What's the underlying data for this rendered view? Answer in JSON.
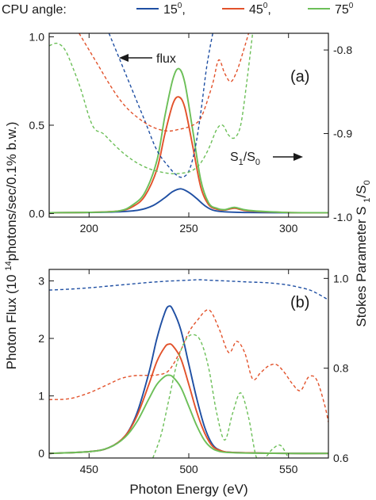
{
  "legend": {
    "title": "CPU angle:",
    "entries": [
      {
        "label": "15",
        "sup": "0",
        "suffix": ",",
        "color": "#1f4fa3"
      },
      {
        "label": "45",
        "sup": "0",
        "suffix": ",",
        "color": "#e2522b"
      },
      {
        "label": "75",
        "sup": "0",
        "suffix": "",
        "color": "#6cbf58"
      }
    ]
  },
  "left_axis_label": {
    "pre": "Photon Flux (10 ",
    "sup": "14",
    "post": "photons/sec/0.1% b.w.)"
  },
  "right_axis_label": {
    "pre": "Stokes Parameter S ",
    "sub1": "1",
    "mid": "/S",
    "sub0": "0"
  },
  "x_axis_label": "Photon Energy (eV)",
  "chart_data": [
    {
      "type": "line",
      "panel": "(a)",
      "xlim": [
        180,
        320
      ],
      "ylim_left": [
        -0.02,
        1.02
      ],
      "ylim_right": [
        -1.0,
        -0.78
      ],
      "xticks": [
        "200",
        "250",
        "300"
      ],
      "xtick_values": [
        200,
        250,
        300
      ],
      "yticks_left": [
        "0.0",
        "0.5",
        "1.0"
      ],
      "ytick_left_values": [
        0,
        0.5,
        1.0
      ],
      "yticks_right": [
        "-1.0",
        "-0.9",
        "-0.8"
      ],
      "ytick_right_values": [
        -1.0,
        -0.9,
        -0.8
      ],
      "annotations": [
        {
          "text": "flux",
          "arrow": "left"
        },
        {
          "text": "S",
          "sub1": "1",
          "mid": "/S",
          "sub0": "0",
          "arrow": "right"
        }
      ],
      "series": [
        {
          "legend_ref": "15",
          "axis": "left",
          "style": "solid",
          "color": "#1f4fa3",
          "x": [
            180,
            200,
            215,
            225,
            232,
            238,
            242,
            246,
            250,
            254,
            258,
            262,
            268,
            280,
            300,
            320
          ],
          "y": [
            0.005,
            0.006,
            0.01,
            0.02,
            0.045,
            0.09,
            0.125,
            0.14,
            0.12,
            0.085,
            0.045,
            0.02,
            0.01,
            0.006,
            0.005,
            0.005
          ]
        },
        {
          "legend_ref": "45",
          "axis": "left",
          "style": "solid",
          "color": "#e2522b",
          "x": [
            180,
            200,
            215,
            222,
            228,
            234,
            238,
            242,
            245,
            248,
            252,
            256,
            260,
            264,
            268,
            273,
            280,
            300,
            320
          ],
          "y": [
            0.005,
            0.007,
            0.015,
            0.04,
            0.1,
            0.25,
            0.45,
            0.62,
            0.66,
            0.6,
            0.38,
            0.15,
            0.05,
            0.025,
            0.02,
            0.03,
            0.015,
            0.006,
            0.005
          ]
        },
        {
          "legend_ref": "75",
          "axis": "left",
          "style": "solid",
          "color": "#6cbf58",
          "x": [
            180,
            200,
            215,
            222,
            228,
            234,
            238,
            242,
            245,
            248,
            252,
            256,
            260,
            264,
            268,
            273,
            280,
            300,
            320
          ],
          "y": [
            0.005,
            0.007,
            0.015,
            0.05,
            0.12,
            0.3,
            0.55,
            0.76,
            0.82,
            0.74,
            0.47,
            0.19,
            0.06,
            0.03,
            0.022,
            0.035,
            0.018,
            0.006,
            0.005
          ]
        },
        {
          "legend_ref": "15",
          "axis": "right",
          "style": "dashed",
          "color": "#1f4fa3",
          "x": [
            210,
            216,
            222,
            228,
            234,
            240,
            244,
            247,
            250,
            253,
            256,
            259,
            262
          ],
          "y": [
            -0.78,
            -0.815,
            -0.85,
            -0.885,
            -0.92,
            -0.94,
            -0.95,
            -0.952,
            -0.945,
            -0.92,
            -0.875,
            -0.82,
            -0.78
          ]
        },
        {
          "legend_ref": "45",
          "axis": "right",
          "style": "dashed",
          "color": "#e2522b",
          "x": [
            195,
            200,
            205,
            210,
            215,
            220,
            225,
            230,
            235,
            240,
            245,
            250,
            255,
            258,
            262,
            265,
            268,
            271,
            274,
            277,
            280
          ],
          "y": [
            -0.78,
            -0.8,
            -0.82,
            -0.84,
            -0.858,
            -0.872,
            -0.882,
            -0.89,
            -0.895,
            -0.897,
            -0.895,
            -0.892,
            -0.885,
            -0.87,
            -0.84,
            -0.812,
            -0.828,
            -0.838,
            -0.826,
            -0.804,
            -0.78
          ]
        },
        {
          "legend_ref": "75",
          "axis": "right",
          "style": "dashed",
          "color": "#6cbf58",
          "x": [
            180,
            184,
            188,
            192,
            196,
            200,
            203,
            207,
            212,
            218,
            224,
            230,
            236,
            242,
            248,
            252,
            256,
            260,
            264,
            267,
            270,
            273,
            276,
            279,
            282
          ],
          "y": [
            -0.795,
            -0.792,
            -0.8,
            -0.822,
            -0.848,
            -0.88,
            -0.895,
            -0.9,
            -0.912,
            -0.925,
            -0.935,
            -0.942,
            -0.946,
            -0.948,
            -0.947,
            -0.944,
            -0.935,
            -0.918,
            -0.895,
            -0.89,
            -0.902,
            -0.905,
            -0.89,
            -0.84,
            -0.78
          ]
        }
      ]
    },
    {
      "type": "line",
      "panel": "(b)",
      "xlim": [
        430,
        570
      ],
      "ylim_left": [
        -0.08,
        3.2
      ],
      "ylim_right": [
        0.6,
        1.02
      ],
      "xticks": [
        "450",
        "500",
        "550"
      ],
      "xtick_values": [
        450,
        500,
        550
      ],
      "yticks_left": [
        "0",
        "1",
        "2",
        "3"
      ],
      "ytick_left_values": [
        0,
        1,
        2,
        3
      ],
      "yticks_right": [
        "0.6",
        "0.8",
        "1.0"
      ],
      "ytick_right_values": [
        0.6,
        0.8,
        1.0
      ],
      "series": [
        {
          "legend_ref": "15",
          "axis": "left",
          "style": "solid",
          "color": "#1f4fa3",
          "x": [
            430,
            450,
            460,
            468,
            474,
            480,
            484,
            488,
            490,
            492,
            496,
            500,
            504,
            508,
            512,
            516,
            520,
            530,
            550,
            570
          ],
          "y": [
            0.0,
            0.03,
            0.1,
            0.3,
            0.7,
            1.4,
            2.0,
            2.45,
            2.56,
            2.5,
            2.15,
            1.55,
            0.95,
            0.45,
            0.15,
            0.05,
            0.02,
            0.01,
            0.0,
            0.0
          ]
        },
        {
          "legend_ref": "45",
          "axis": "left",
          "style": "solid",
          "color": "#e2522b",
          "x": [
            430,
            450,
            460,
            468,
            474,
            480,
            484,
            488,
            490,
            492,
            496,
            500,
            504,
            508,
            512,
            516,
            520,
            530,
            550,
            570
          ],
          "y": [
            0.0,
            0.03,
            0.1,
            0.3,
            0.65,
            1.2,
            1.6,
            1.85,
            1.9,
            1.87,
            1.65,
            1.2,
            0.72,
            0.35,
            0.12,
            0.05,
            0.02,
            0.01,
            0.0,
            0.0
          ]
        },
        {
          "legend_ref": "75",
          "axis": "left",
          "style": "solid",
          "color": "#6cbf58",
          "x": [
            430,
            450,
            460,
            468,
            474,
            480,
            484,
            488,
            490,
            492,
            496,
            500,
            504,
            508,
            512,
            516,
            520,
            530,
            550,
            570
          ],
          "y": [
            0.0,
            0.03,
            0.1,
            0.28,
            0.55,
            0.95,
            1.2,
            1.34,
            1.36,
            1.33,
            1.15,
            0.82,
            0.48,
            0.22,
            0.08,
            0.03,
            0.015,
            0.005,
            0.0,
            0.0
          ]
        },
        {
          "legend_ref": "15",
          "axis": "right",
          "style": "dashed",
          "color": "#1f4fa3",
          "x": [
            430,
            440,
            450,
            460,
            470,
            480,
            490,
            500,
            505,
            510,
            520,
            530,
            540,
            550,
            560,
            565,
            570
          ],
          "y": [
            0.974,
            0.976,
            0.979,
            0.983,
            0.987,
            0.991,
            0.994,
            0.996,
            0.997,
            0.996,
            0.994,
            0.992,
            0.99,
            0.985,
            0.975,
            0.965,
            0.952
          ]
        },
        {
          "legend_ref": "45",
          "axis": "right",
          "style": "dashed",
          "color": "#e2522b",
          "x": [
            430,
            440,
            450,
            460,
            466,
            472,
            478,
            484,
            490,
            496,
            500,
            504,
            510,
            515,
            520,
            524,
            528,
            532,
            536,
            540,
            544,
            548,
            552,
            556,
            560,
            564,
            568,
            570
          ],
          "y": [
            0.73,
            0.732,
            0.745,
            0.765,
            0.777,
            0.783,
            0.784,
            0.785,
            0.795,
            0.84,
            0.88,
            0.905,
            0.93,
            0.89,
            0.835,
            0.86,
            0.835,
            0.776,
            0.79,
            0.805,
            0.808,
            0.79,
            0.765,
            0.75,
            0.78,
            0.775,
            0.72,
            0.68
          ]
        },
        {
          "legend_ref": "75",
          "axis": "right",
          "style": "dashed",
          "color": "#6cbf58",
          "x": [
            482,
            486,
            490,
            494,
            498,
            502,
            506,
            510,
            514,
            518,
            522,
            526,
            530,
            534,
            538,
            542,
            546,
            550
          ],
          "y": [
            0.6,
            0.65,
            0.73,
            0.81,
            0.86,
            0.875,
            0.86,
            0.8,
            0.7,
            0.64,
            0.7,
            0.745,
            0.69,
            0.6,
            0.6,
            0.62,
            0.628,
            0.6
          ]
        }
      ]
    }
  ]
}
